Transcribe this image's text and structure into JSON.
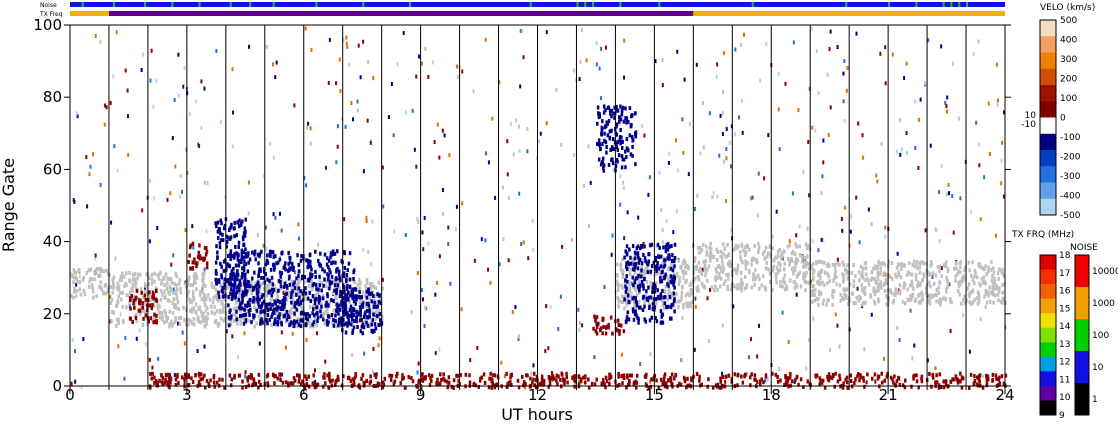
{
  "chart_data": {
    "type": "scatter",
    "xlabel": "UT hours",
    "ylabel": "Range Gate",
    "xlim": [
      0,
      24
    ],
    "ylim": [
      0,
      100
    ],
    "x_ticks": [
      0,
      3,
      6,
      9,
      12,
      15,
      18,
      21,
      24
    ],
    "y_ticks": [
      0,
      20,
      40,
      60,
      80,
      100
    ],
    "hour_gridlines": [
      1,
      2,
      3,
      4,
      5,
      6,
      7,
      8,
      9,
      10,
      11,
      12,
      13,
      14,
      15,
      16,
      17,
      18,
      19,
      20,
      21,
      22,
      23
    ],
    "top_strips": {
      "noise_label": "Noise",
      "txfreq_label": "TX Freq",
      "noise_color": "#1010e0",
      "noise_markers_color": "#20c020",
      "noise_markers_x": [
        0.3,
        1.1,
        1.9,
        2.6,
        3.3,
        4.1,
        4.6,
        5.2,
        6.3,
        7.5,
        8.7,
        11.8,
        13.0,
        13.2,
        13.4,
        14.1,
        15.1,
        17.5,
        19.9,
        21.0,
        21.7,
        22.4,
        22.6,
        22.8,
        23.0
      ],
      "txfreq_segments": [
        {
          "from": 0,
          "to": 1,
          "color": "#f0b000"
        },
        {
          "from": 1,
          "to": 16,
          "color": "#600090"
        },
        {
          "from": 16,
          "to": 24,
          "color": "#f0b000"
        }
      ]
    },
    "velocity_scale": {
      "title": "VELO (km/s)",
      "ticks": [
        "500",
        "400",
        "300",
        "200",
        "100",
        "0",
        "-100",
        "-200",
        "-300",
        "-400",
        "-500"
      ],
      "extra_ticks": [
        "10",
        "-10"
      ],
      "colors": [
        "#f7ddc0",
        "#f3a060",
        "#f08000",
        "#d05000",
        "#a01000",
        "#800000",
        "#ffffff",
        "#000080",
        "#0040c0",
        "#2070e0",
        "#60a0e8",
        "#b0d4f0"
      ]
    },
    "txfreq_scale": {
      "title": "TX FRQ (MHz)",
      "ticks": [
        "18",
        "17",
        "16",
        "15",
        "14",
        "13",
        "12",
        "11",
        "10",
        "9"
      ],
      "colors": [
        "#e00000",
        "#f03000",
        "#f06000",
        "#f0a000",
        "#f0e000",
        "#80e000",
        "#00d000",
        "#00a0e0",
        "#1010e0",
        "#6000a0",
        "#000000"
      ]
    },
    "noise_scale": {
      "title": "NOISE",
      "ticks": [
        "10000",
        "1000",
        "100",
        "10",
        "1"
      ],
      "colors": [
        "#f00000",
        "#f0a000",
        "#00d000",
        "#1010e0",
        "#000000"
      ]
    },
    "ground_scatter_color": "#c0c0c0",
    "series": [
      {
        "type": "ground_scatter",
        "color": "#c0c0c0",
        "bands": [
          {
            "x": [
              0,
              1
            ],
            "y": [
              25,
              33
            ]
          },
          {
            "x": [
              1,
              3.5
            ],
            "y": [
              17,
              32
            ]
          },
          {
            "x": [
              3.5,
              8
            ],
            "y": [
              17,
              30
            ]
          },
          {
            "x": [
              14,
              16
            ],
            "y": [
              22,
              36
            ]
          },
          {
            "x": [
              16,
              19
            ],
            "y": [
              27,
              40
            ]
          },
          {
            "x": [
              19,
              24
            ],
            "y": [
              23,
              35
            ]
          }
        ]
      },
      {
        "type": "negative_velocity",
        "color": "#00008c",
        "bands": [
          {
            "x": [
              3.7,
              4.5
            ],
            "y": [
              25,
              47
            ]
          },
          {
            "x": [
              4.0,
              7.3
            ],
            "y": [
              17,
              38
            ]
          },
          {
            "x": [
              6.8,
              8.0
            ],
            "y": [
              15,
              28
            ]
          },
          {
            "x": [
              14.2,
              15.5
            ],
            "y": [
              18,
              40
            ]
          },
          {
            "x": [
              13.5,
              14.5
            ],
            "y": [
              60,
              78
            ]
          }
        ]
      },
      {
        "type": "positive_velocity",
        "color": "#8c0000",
        "bands": [
          {
            "x": [
              1.5,
              2.2
            ],
            "y": [
              18,
              27
            ]
          },
          {
            "x": [
              13.4,
              14.2
            ],
            "y": [
              15,
              20
            ]
          },
          {
            "x": [
              3.0,
              3.5
            ],
            "y": [
              33,
              40
            ]
          },
          {
            "x": [
              2.0,
              24.0
            ],
            "y": [
              0,
              4
            ]
          }
        ]
      }
    ]
  }
}
